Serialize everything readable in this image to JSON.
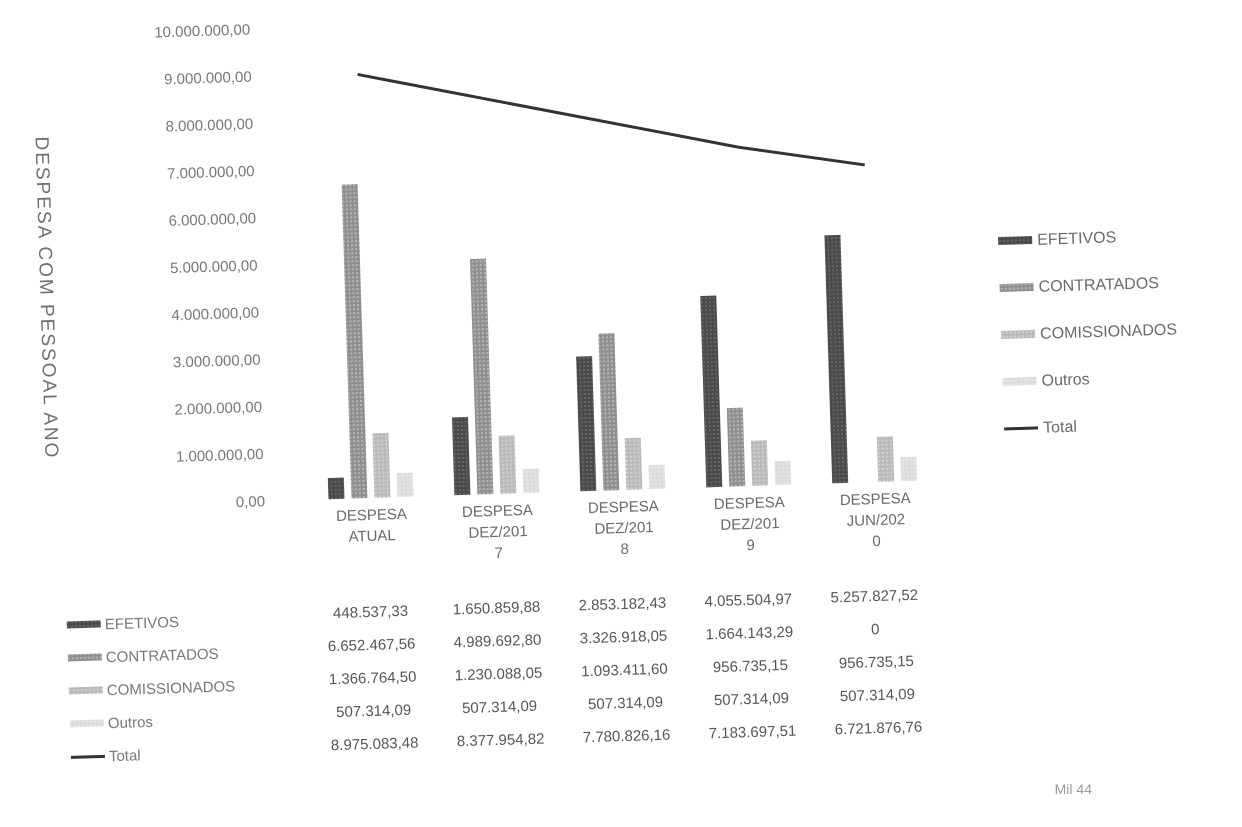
{
  "chart_data": {
    "type": "bar",
    "ylabel": "DESPESA COM PESSOAL ANO",
    "ylim": [
      0,
      10000000
    ],
    "y_ticks": [
      "0,00",
      "1.000.000,00",
      "2.000.000,00",
      "3.000.000,00",
      "4.000.000,00",
      "5.000.000,00",
      "6.000.000,00",
      "7.000.000,00",
      "8.000.000,00",
      "9.000.000,00",
      "10.000.000,00"
    ],
    "categories": [
      [
        "DESPESA",
        "ATUAL"
      ],
      [
        "DESPESA",
        "DEZ/201",
        "7"
      ],
      [
        "DESPESA",
        "DEZ/201",
        "8"
      ],
      [
        "DESPESA",
        "DEZ/201",
        "9"
      ],
      [
        "DESPESA",
        "JUN/202",
        "0"
      ]
    ],
    "series": [
      {
        "name": "EFETIVOS",
        "kind": "bar",
        "color": "#4a4a4a",
        "values": [
          448537.33,
          1650859.88,
          2853182.43,
          4055504.97,
          5257827.52
        ],
        "labels": [
          "448.537,33",
          "1.650.859,88",
          "2.853.182,43",
          "4.055.504,97",
          "5.257.827,52"
        ]
      },
      {
        "name": "CONTRATADOS",
        "kind": "bar",
        "color": "#8f8f8f",
        "values": [
          6652467.56,
          4989692.8,
          3326918.05,
          1664143.29,
          0
        ],
        "labels": [
          "6.652.467,56",
          "4.989.692,80",
          "3.326.918,05",
          "1.664.143,29",
          "0"
        ]
      },
      {
        "name": "COMISSIONADOS",
        "kind": "bar",
        "color": "#b9b9b9",
        "values": [
          1366764.5,
          1230088.05,
          1093411.6,
          956735.15,
          956735.15
        ],
        "labels": [
          "1.366.764,50",
          "1.230.088,05",
          "1.093.411,60",
          "956.735,15",
          "956.735,15"
        ]
      },
      {
        "name": "Outros",
        "kind": "bar",
        "color": "#dcdcdc",
        "values": [
          507314.09,
          507314.09,
          507314.09,
          507314.09,
          507314.09
        ],
        "labels": [
          "507.314,09",
          "507.314,09",
          "507.314,09",
          "507.314,09",
          "507.314,09"
        ]
      },
      {
        "name": "Total",
        "kind": "line",
        "color": "#333333",
        "values": [
          8975083.48,
          8377954.82,
          7780826.16,
          7183697.51,
          6721876.76
        ],
        "labels": [
          "8.975.083,48",
          "8.377.954,82",
          "7.780.826,16",
          "7.183.697,51",
          "6.721.876,76"
        ]
      }
    ],
    "grid": false,
    "legend_position": "right"
  },
  "footer": {
    "corner_text": "Mil 44"
  }
}
